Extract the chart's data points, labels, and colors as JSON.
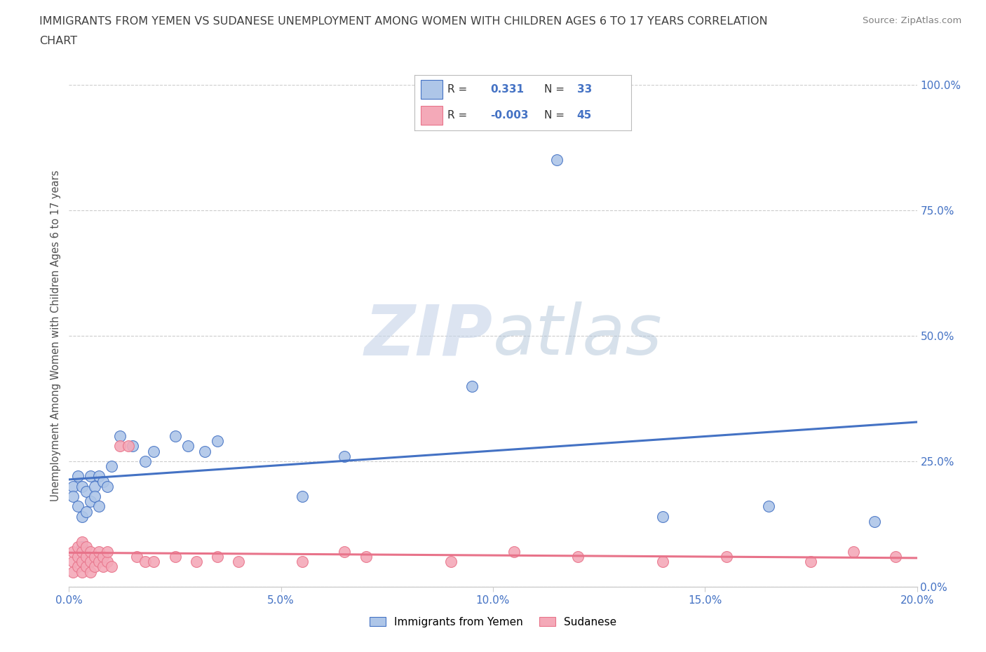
{
  "title_line1": "IMMIGRANTS FROM YEMEN VS SUDANESE UNEMPLOYMENT AMONG WOMEN WITH CHILDREN AGES 6 TO 17 YEARS CORRELATION",
  "title_line2": "CHART",
  "source": "Source: ZipAtlas.com",
  "ylabel": "Unemployment Among Women with Children Ages 6 to 17 years",
  "xlim": [
    0.0,
    0.2
  ],
  "ylim": [
    0.0,
    1.0
  ],
  "yticks": [
    0.0,
    0.25,
    0.5,
    0.75,
    1.0
  ],
  "ytick_labels": [
    "0.0%",
    "25.0%",
    "50.0%",
    "75.0%",
    "100.0%"
  ],
  "xticks": [
    0.0,
    0.05,
    0.1,
    0.15,
    0.2
  ],
  "xtick_labels": [
    "0.0%",
    "5.0%",
    "10.0%",
    "15.0%",
    "20.0%"
  ],
  "legend_entries": [
    {
      "label": "Immigrants from Yemen",
      "color": "#aec6e8",
      "R": "0.331",
      "N": "33"
    },
    {
      "label": "Sudanese",
      "color": "#f4a9b8",
      "R": "-0.003",
      "N": "45"
    }
  ],
  "watermark_zip": "ZIP",
  "watermark_atlas": "atlas",
  "watermark_color_zip": "#c8d4e8",
  "watermark_color_atlas": "#b8cce0",
  "background_color": "#ffffff",
  "grid_color": "#cccccc",
  "yemen_scatter_x": [
    0.001,
    0.001,
    0.002,
    0.002,
    0.003,
    0.003,
    0.003,
    0.004,
    0.004,
    0.005,
    0.005,
    0.006,
    0.006,
    0.007,
    0.007,
    0.008,
    0.009,
    0.01,
    0.012,
    0.015,
    0.018,
    0.02,
    0.025,
    0.028,
    0.032,
    0.035,
    0.055,
    0.065,
    0.095,
    0.115,
    0.14,
    0.165,
    0.19
  ],
  "yemen_scatter_y": [
    0.2,
    0.18,
    0.22,
    0.16,
    0.2,
    0.14,
    0.08,
    0.19,
    0.15,
    0.22,
    0.17,
    0.2,
    0.18,
    0.22,
    0.16,
    0.21,
    0.2,
    0.24,
    0.3,
    0.28,
    0.25,
    0.27,
    0.3,
    0.28,
    0.27,
    0.29,
    0.18,
    0.26,
    0.4,
    0.85,
    0.14,
    0.16,
    0.13
  ],
  "sudanese_scatter_x": [
    0.001,
    0.001,
    0.001,
    0.002,
    0.002,
    0.002,
    0.003,
    0.003,
    0.003,
    0.003,
    0.004,
    0.004,
    0.004,
    0.005,
    0.005,
    0.005,
    0.006,
    0.006,
    0.007,
    0.007,
    0.008,
    0.008,
    0.009,
    0.009,
    0.01,
    0.012,
    0.014,
    0.016,
    0.018,
    0.02,
    0.025,
    0.03,
    0.035,
    0.04,
    0.055,
    0.065,
    0.07,
    0.09,
    0.105,
    0.12,
    0.14,
    0.155,
    0.175,
    0.185,
    0.195
  ],
  "sudanese_scatter_y": [
    0.05,
    0.03,
    0.07,
    0.04,
    0.06,
    0.08,
    0.05,
    0.03,
    0.07,
    0.09,
    0.04,
    0.06,
    0.08,
    0.05,
    0.03,
    0.07,
    0.04,
    0.06,
    0.05,
    0.07,
    0.04,
    0.06,
    0.05,
    0.07,
    0.04,
    0.28,
    0.28,
    0.06,
    0.05,
    0.05,
    0.06,
    0.05,
    0.06,
    0.05,
    0.05,
    0.07,
    0.06,
    0.05,
    0.07,
    0.06,
    0.05,
    0.06,
    0.05,
    0.07,
    0.06
  ],
  "yemen_line_color": "#4472c4",
  "sudanese_line_color": "#e8738a",
  "title_color": "#404040",
  "axis_color": "#505050",
  "tick_color": "#4472c4",
  "source_color": "#808080"
}
